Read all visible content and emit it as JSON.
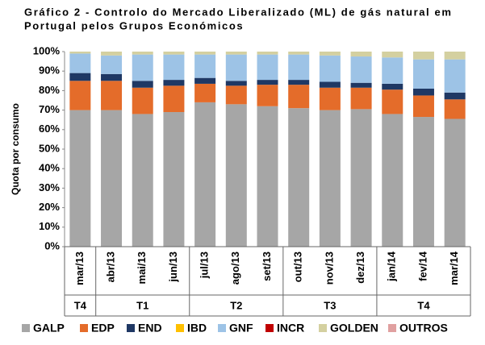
{
  "chart_data": {
    "type": "stacked-bar",
    "title": [
      "Gráfico 2 - Controlo do Mercado Liberalizado (ML) de gás natural em",
      "Portugal pelos Grupos Económicos"
    ],
    "y_label": "Quota por consumo",
    "categories": [
      "mar/13",
      "abr/13",
      "mai/13",
      "jun/13",
      "jul/13",
      "ago/13",
      "set/13",
      "out/13",
      "nov/13",
      "dez/13",
      "jan/14",
      "fev/14",
      "mar/14"
    ],
    "quarter_groups": [
      {
        "label": "T4",
        "count": 1
      },
      {
        "label": "T1",
        "count": 3
      },
      {
        "label": "T2",
        "count": 3
      },
      {
        "label": "T3",
        "count": 3
      },
      {
        "label": "T4",
        "count": 3
      }
    ],
    "series": [
      {
        "name": "GALP",
        "color": "#a6a6a6",
        "values": [
          70,
          70,
          68,
          69,
          74,
          73,
          72,
          71,
          70,
          70.5,
          68,
          66.5,
          65.5
        ]
      },
      {
        "name": "EDP",
        "color": "#e46c2a",
        "values": [
          15,
          15,
          13.5,
          13.5,
          9.5,
          9.5,
          11,
          12,
          11.5,
          11,
          12.5,
          11,
          10
        ]
      },
      {
        "name": "END",
        "color": "#1f3864",
        "values": [
          4,
          3.5,
          3.5,
          3,
          3,
          2.5,
          2.5,
          2.5,
          3,
          2.5,
          3,
          3.5,
          3.5
        ]
      },
      {
        "name": "IBD",
        "color": "#ffc000",
        "values": [
          0,
          0,
          0,
          0,
          0,
          0,
          0,
          0,
          0,
          0,
          0,
          0,
          0
        ]
      },
      {
        "name": "GNF",
        "color": "#9dc3e6",
        "values": [
          10,
          9.5,
          13.5,
          13,
          12,
          13.5,
          13,
          13,
          13.5,
          13.5,
          13.5,
          15,
          17
        ]
      },
      {
        "name": "INCR",
        "color": "#c00000",
        "values": [
          0,
          0,
          0,
          0,
          0,
          0,
          0,
          0,
          0,
          0,
          0,
          0,
          0
        ]
      },
      {
        "name": "GOLDEN",
        "color": "#d4d0a0",
        "values": [
          1,
          2,
          1.5,
          1.5,
          1.5,
          1.5,
          1.5,
          1.5,
          2,
          2.5,
          3,
          4,
          4
        ]
      },
      {
        "name": "OUTROS",
        "color": "#e0a0a0",
        "values": [
          0,
          0,
          0,
          0,
          0,
          0,
          0,
          0,
          0,
          0,
          0,
          0,
          0
        ]
      }
    ],
    "ylim": [
      0,
      100
    ],
    "yticks": [
      {
        "value": 0,
        "label": "0%"
      },
      {
        "value": 10,
        "label": "10%"
      },
      {
        "value": 20,
        "label": "20%"
      },
      {
        "value": 30,
        "label": "30%"
      },
      {
        "value": 40,
        "label": "40%"
      },
      {
        "value": 50,
        "label": "50%"
      },
      {
        "value": 60,
        "label": "60%"
      },
      {
        "value": 70,
        "label": "70%"
      },
      {
        "value": 80,
        "label": "80%"
      },
      {
        "value": 90,
        "label": "90%"
      },
      {
        "value": 100,
        "label": "100%"
      }
    ]
  }
}
